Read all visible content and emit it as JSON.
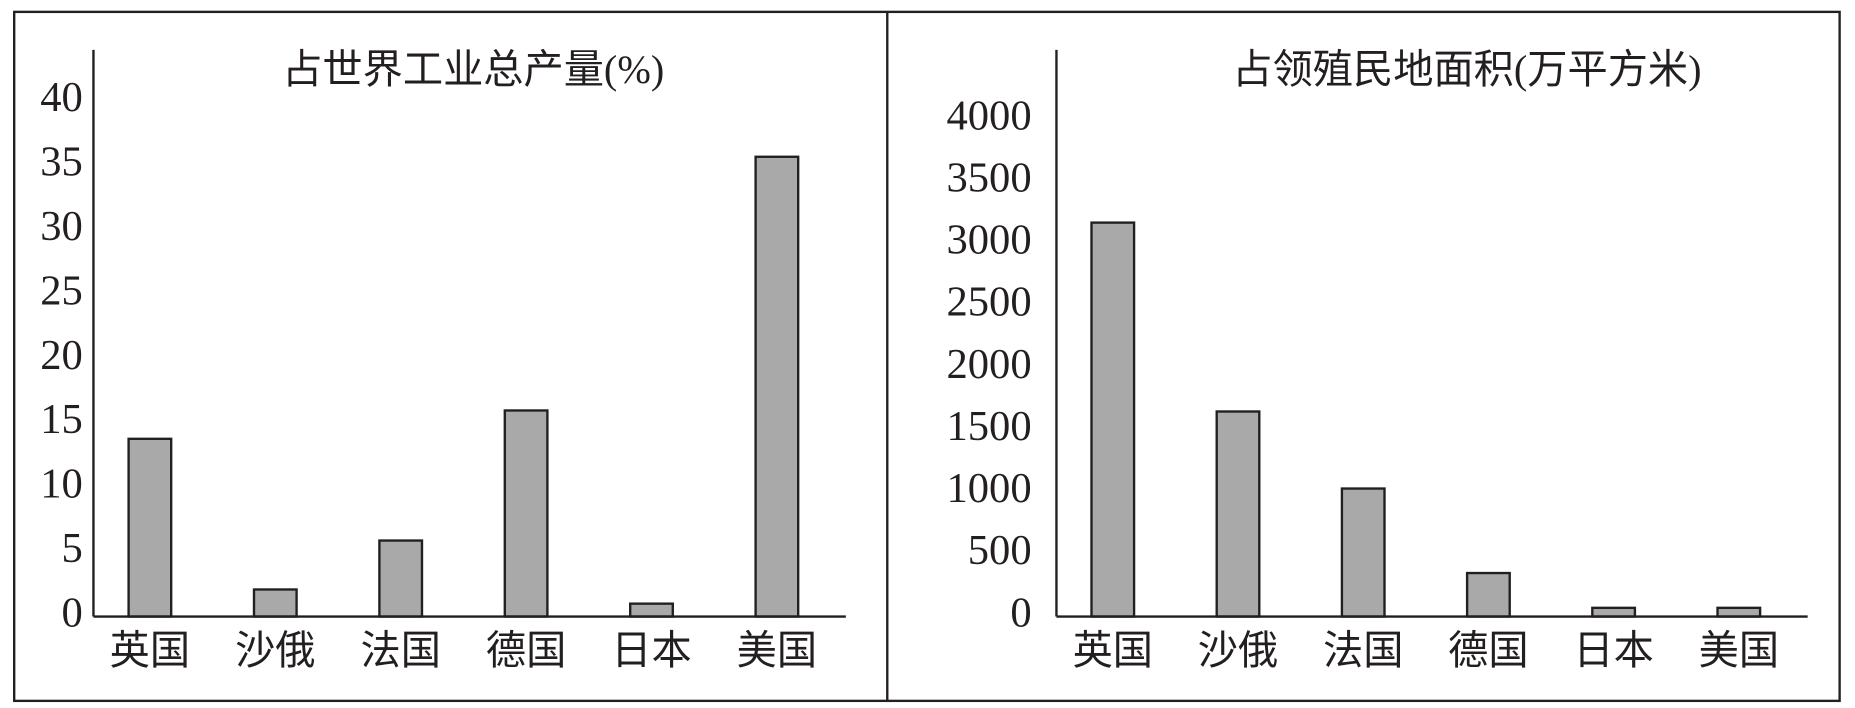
{
  "chart_data": [
    {
      "type": "bar",
      "title": "占世界工业总产量(%)",
      "categories": [
        "英国",
        "沙俄",
        "法国",
        "德国",
        "日本",
        "美国"
      ],
      "values": [
        13.8,
        2.1,
        5.9,
        16,
        1,
        35.7
      ],
      "color": "#a9a9a9",
      "ylim": [
        0,
        44
      ],
      "yticks": [
        0,
        5,
        10,
        15,
        20,
        25,
        30,
        35,
        40
      ]
    },
    {
      "type": "bar",
      "title": "占领殖民地面积(万平方米)",
      "categories": [
        "英国",
        "沙俄",
        "法国",
        "德国",
        "日本",
        "美国"
      ],
      "values": [
        3170,
        1650,
        1030,
        350,
        70,
        70
      ],
      "color": "#a9a9a9",
      "ylim": [
        0,
        4560
      ],
      "yticks": [
        0,
        500,
        1000,
        1500,
        2000,
        2500,
        3000,
        3500,
        4000
      ]
    }
  ]
}
